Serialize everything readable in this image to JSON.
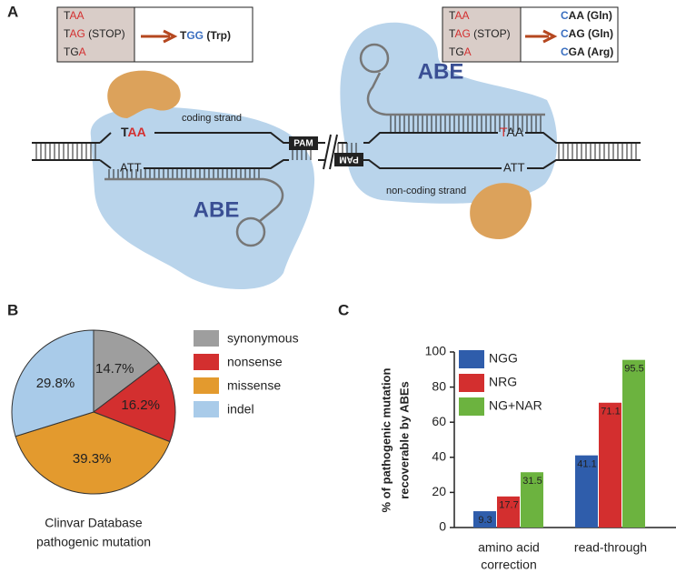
{
  "panels": {
    "a": "A",
    "b": "B",
    "c": "C"
  },
  "diagram": {
    "left_box": {
      "codons": [
        [
          {
            "text": "T",
            "color": "#222222"
          },
          {
            "text": "AA",
            "color": "#d32f2f"
          }
        ],
        [
          {
            "text": "T",
            "color": "#222222"
          },
          {
            "text": "AG",
            "color": "#d32f2f"
          },
          {
            "text": " (STOP)",
            "color": "#222222"
          }
        ],
        [
          {
            "text": "TG",
            "color": "#222222"
          },
          {
            "text": "A",
            "color": "#d32f2f"
          }
        ]
      ],
      "results": [
        [
          {
            "text": "T",
            "color": "#222222"
          },
          {
            "text": "GG",
            "color": "#3b6fc0"
          },
          {
            "text": " (Trp)",
            "color": "#222222"
          }
        ]
      ]
    },
    "right_box": {
      "codons": [
        [
          {
            "text": "T",
            "color": "#222222"
          },
          {
            "text": "AA",
            "color": "#d32f2f"
          }
        ],
        [
          {
            "text": "T",
            "color": "#222222"
          },
          {
            "text": "AG",
            "color": "#d32f2f"
          },
          {
            "text": " (STOP)",
            "color": "#222222"
          }
        ],
        [
          {
            "text": "TG",
            "color": "#222222"
          },
          {
            "text": "A",
            "color": "#d32f2f"
          }
        ]
      ],
      "results": [
        [
          {
            "text": "C",
            "color": "#3b6fc0"
          },
          {
            "text": "AA (Gln)",
            "color": "#222222"
          }
        ],
        [
          {
            "text": "C",
            "color": "#3b6fc0"
          },
          {
            "text": "AG (Gln)",
            "color": "#222222"
          }
        ],
        [
          {
            "text": "C",
            "color": "#3b6fc0"
          },
          {
            "text": "GA (Arg)",
            "color": "#222222"
          }
        ]
      ]
    },
    "left_top_codon": [
      {
        "text": "T",
        "color": "#222222"
      },
      {
        "text": "AA",
        "color": "#d32f2f"
      }
    ],
    "left_bottom_codon": "ATT",
    "right_top_codon": [
      {
        "text": "T",
        "color": "#d32f2f"
      },
      {
        "text": "AA",
        "color": "#222222"
      }
    ],
    "right_bottom_codon": "ATT",
    "coding_strand": "coding strand",
    "non_coding_strand": "non-coding strand",
    "pam": [
      "PAM",
      "PAM"
    ],
    "abe": [
      "ABE",
      "ABE"
    ]
  },
  "chart_data": [
    {
      "type": "pie",
      "title": [
        "Clinvar Database",
        "pathogenic mutation"
      ],
      "categories": [
        "synonymous",
        "nonsense",
        "missense",
        "indel"
      ],
      "values": [
        14.7,
        16.2,
        39.3,
        29.8
      ],
      "value_labels": [
        "14.7%",
        "16.2%",
        "39.3%",
        "29.8%"
      ],
      "colors": [
        "#9e9e9e",
        "#d32f2f",
        "#e39a2e",
        "#a9cbe9"
      ]
    },
    {
      "type": "bar",
      "y_label": [
        "% of pathogenic mutation",
        "recoverable by ABEs"
      ],
      "categories": [
        [
          "amino acid",
          "correction"
        ],
        [
          "read-through"
        ]
      ],
      "series": [
        {
          "name": "NGG",
          "color": "#2f5dab",
          "values": [
            9.3,
            41.1
          ]
        },
        {
          "name": "NRG",
          "color": "#d32f2f",
          "values": [
            17.7,
            71.1
          ]
        },
        {
          "name": "NG+NAR",
          "color": "#6cb33f",
          "values": [
            31.5,
            95.5
          ]
        }
      ],
      "ylim": [
        0,
        100
      ],
      "yticks": [
        0,
        20,
        40,
        60,
        80,
        100
      ],
      "legend": "upper left"
    }
  ]
}
